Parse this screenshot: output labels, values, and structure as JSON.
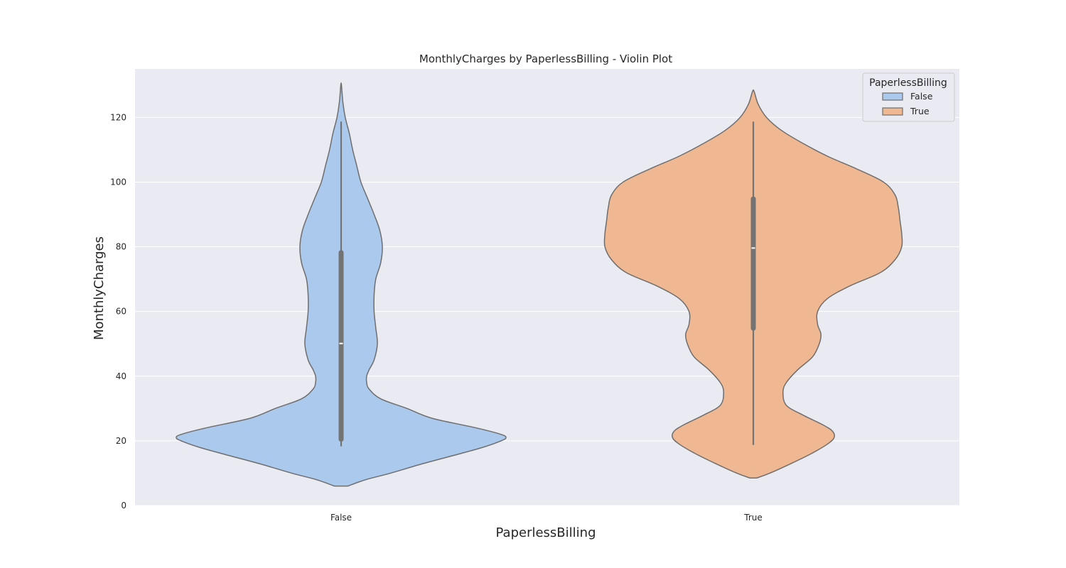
{
  "chart_data": {
    "type": "violin",
    "title": "MonthlyCharges by PaperlessBilling - Violin Plot",
    "xlabel": "PaperlessBilling",
    "ylabel": "MonthlyCharges",
    "categories": [
      "False",
      "True"
    ],
    "ylim": [
      0,
      135
    ],
    "yticks": [
      0,
      20,
      40,
      60,
      80,
      100,
      120
    ],
    "grid": true,
    "legend": {
      "title": "PaperlessBilling",
      "placement": "top-right",
      "entries": [
        {
          "label": "False",
          "color": "#abc9ed"
        },
        {
          "label": "True",
          "color": "#f0b892"
        }
      ]
    },
    "series": [
      {
        "category": "False",
        "color": "#abc9ed",
        "min": 18.3,
        "q1": 20.5,
        "median": 50.1,
        "q3": 78.2,
        "max": 118.7,
        "density": [
          [
            6.0,
            0.04
          ],
          [
            8.0,
            0.15
          ],
          [
            10.0,
            0.3
          ],
          [
            13.0,
            0.5
          ],
          [
            16.0,
            0.72
          ],
          [
            18.0,
            0.86
          ],
          [
            20.0,
            0.97
          ],
          [
            21.0,
            1.0
          ],
          [
            22.0,
            0.97
          ],
          [
            24.0,
            0.82
          ],
          [
            27.0,
            0.55
          ],
          [
            30.0,
            0.4
          ],
          [
            33.0,
            0.24
          ],
          [
            36.0,
            0.17
          ],
          [
            38.0,
            0.155
          ],
          [
            40.0,
            0.155
          ],
          [
            42.0,
            0.17
          ],
          [
            45.0,
            0.2
          ],
          [
            50.0,
            0.22
          ],
          [
            55.0,
            0.21
          ],
          [
            60.0,
            0.2
          ],
          [
            65.0,
            0.2
          ],
          [
            70.0,
            0.21
          ],
          [
            75.0,
            0.24
          ],
          [
            80.0,
            0.25
          ],
          [
            85.0,
            0.235
          ],
          [
            90.0,
            0.2
          ],
          [
            95.0,
            0.16
          ],
          [
            100.0,
            0.12
          ],
          [
            105.0,
            0.095
          ],
          [
            110.0,
            0.07
          ],
          [
            115.0,
            0.05
          ],
          [
            120.0,
            0.025
          ],
          [
            125.0,
            0.01
          ],
          [
            130.0,
            0.002
          ]
        ]
      },
      {
        "category": "True",
        "color": "#f0b892",
        "min": 18.7,
        "q1": 54.8,
        "median": 79.6,
        "q3": 94.8,
        "max": 118.7,
        "density": [
          [
            8.5,
            0.02
          ],
          [
            10.0,
            0.1
          ],
          [
            13.0,
            0.23
          ],
          [
            16.0,
            0.35
          ],
          [
            19.0,
            0.45
          ],
          [
            21.0,
            0.49
          ],
          [
            23.0,
            0.48
          ],
          [
            25.0,
            0.42
          ],
          [
            28.0,
            0.3
          ],
          [
            31.0,
            0.2
          ],
          [
            35.0,
            0.18
          ],
          [
            38.0,
            0.2
          ],
          [
            42.0,
            0.27
          ],
          [
            46.0,
            0.36
          ],
          [
            50.0,
            0.4
          ],
          [
            53.0,
            0.41
          ],
          [
            56.0,
            0.39
          ],
          [
            60.0,
            0.39
          ],
          [
            64.0,
            0.45
          ],
          [
            68.0,
            0.59
          ],
          [
            72.0,
            0.77
          ],
          [
            76.0,
            0.86
          ],
          [
            80.0,
            0.9
          ],
          [
            84.0,
            0.9
          ],
          [
            88.0,
            0.89
          ],
          [
            92.0,
            0.88
          ],
          [
            96.0,
            0.86
          ],
          [
            100.0,
            0.79
          ],
          [
            104.0,
            0.63
          ],
          [
            108.0,
            0.45
          ],
          [
            112.0,
            0.3
          ],
          [
            116.0,
            0.17
          ],
          [
            120.0,
            0.08
          ],
          [
            124.0,
            0.03
          ],
          [
            128.0,
            0.005
          ]
        ]
      }
    ]
  }
}
